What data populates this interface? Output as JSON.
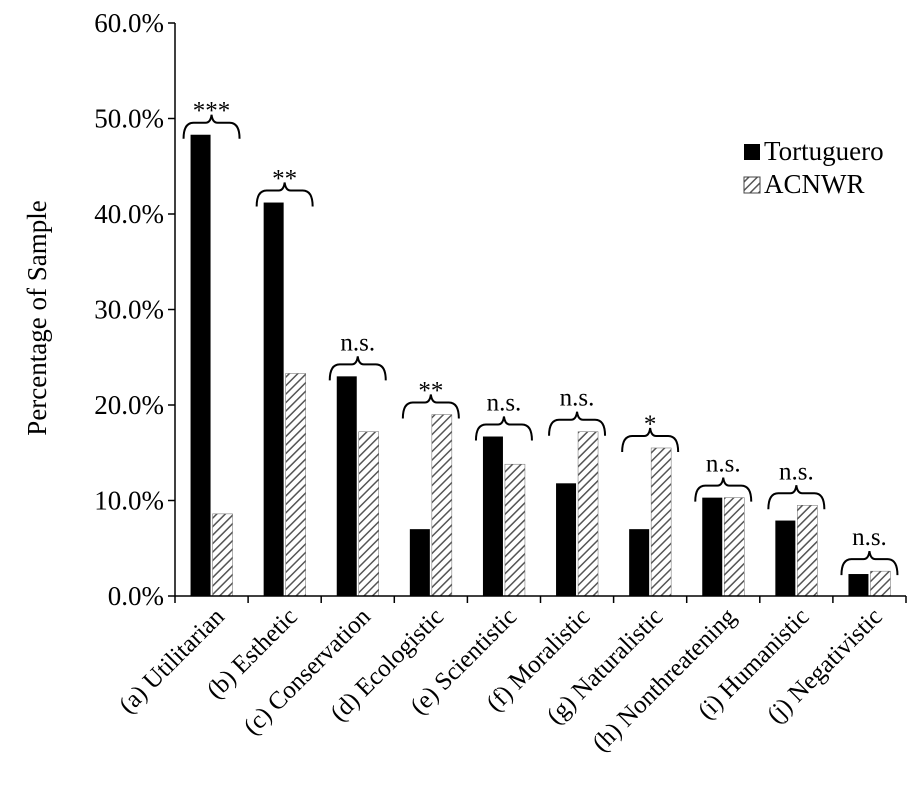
{
  "chart_data": {
    "type": "bar",
    "title": "",
    "ylabel": "Percentage of Sample",
    "xlabel": "",
    "ylim": [
      0,
      60
    ],
    "yticks": [
      "0.0%",
      "10.0%",
      "20.0%",
      "30.0%",
      "40.0%",
      "50.0%",
      "60.0%"
    ],
    "categories": [
      "(a) Utilitarian",
      "(b) Esthetic",
      "(c) Conservation",
      "(d) Ecologistic",
      "(e) Scientistic",
      "(f) Moralistic",
      "(g) Naturalistic",
      "(h) Nonthreatening",
      "(i) Humanistic",
      "(j) Negativistic"
    ],
    "series": [
      {
        "name": "Tortuguero",
        "values": [
          48.3,
          41.2,
          23.0,
          7.0,
          16.7,
          11.8,
          7.0,
          10.3,
          7.9,
          2.3
        ],
        "fill": "#000000"
      },
      {
        "name": "ACNWR",
        "values": [
          8.6,
          23.3,
          17.2,
          19.0,
          13.8,
          17.2,
          15.5,
          10.3,
          9.5,
          2.6
        ],
        "fill": "hatched"
      }
    ],
    "significance": [
      "***",
      "**",
      "n.s.",
      "**",
      "n.s.",
      "n.s.",
      "*",
      "n.s.",
      "n.s.",
      "n.s."
    ],
    "legend_position": "top-right",
    "grid": false
  }
}
